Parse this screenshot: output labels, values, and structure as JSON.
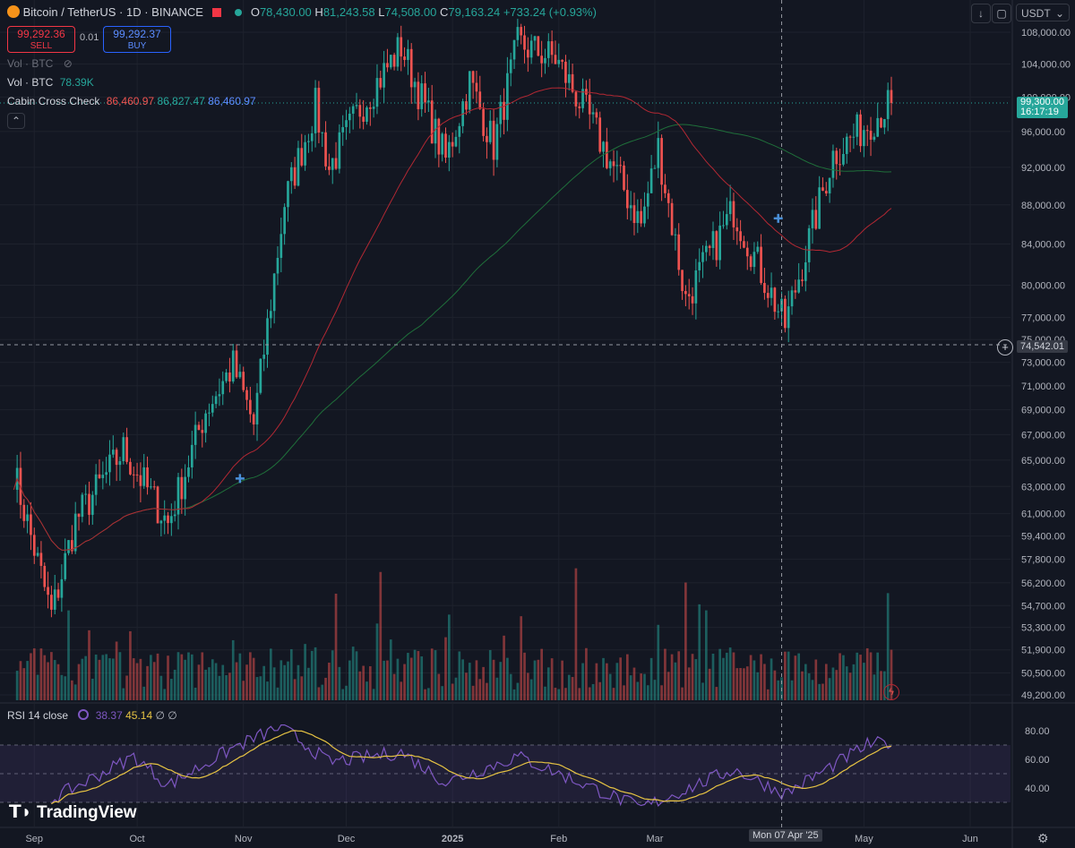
{
  "header": {
    "title": "Bitcoin / TetherUS · 1D · BINANCE",
    "ohlc": {
      "o_label": "O",
      "o": "78,430.00",
      "h_label": "H",
      "h": "81,243.58",
      "l_label": "L",
      "l": "74,508.00",
      "c_label": "C",
      "c": "79,163.24",
      "change": "+733.24 (+0.93%)"
    },
    "sell_price": "99,292.36",
    "sell_label": "SELL",
    "spread": "0.01",
    "buy_price": "99,292.37",
    "buy_label": "BUY",
    "currency": "USDT"
  },
  "indicators": {
    "vol_hidden": "Vol · BTC",
    "vol_label": "Vol · BTC",
    "vol_value": "78.39K",
    "cabin_label": "Cabin Cross Check",
    "cabin_v1": "86,460.97",
    "cabin_v2": "86,827.47",
    "cabin_v3": "86,460.97",
    "rsi_label": "RSI 14 close",
    "rsi_v1": "38.37",
    "rsi_v2": "45.14",
    "rsi_null1": "∅",
    "rsi_null2": "∅"
  },
  "price_axis": {
    "labels": [
      "108,000.00",
      "104,000.00",
      "100,000.00",
      "96,000.00",
      "92,000.00",
      "88,000.00",
      "84,000.00",
      "80,000.00",
      "77,000.00",
      "75,000.00",
      "73,000.00",
      "71,000.00",
      "69,000.00",
      "67,000.00",
      "65,000.00",
      "63,000.00",
      "61,000.00",
      "59,400.00",
      "57,800.00",
      "56,200.00",
      "54,700.00",
      "53,300.00",
      "51,900.00",
      "50,500.00",
      "49,200.00"
    ],
    "last_price": "99,300.00",
    "countdown": "16:17:19",
    "crosshair_price": "74,542.01"
  },
  "rsi_axis": {
    "labels": [
      "80.00",
      "60.00",
      "40.00"
    ]
  },
  "time_axis": {
    "labels": [
      "Sep",
      "Oct",
      "Nov",
      "Dec",
      "2025",
      "Feb",
      "Mar",
      "May",
      "Jun"
    ],
    "crosshair_date": "Mon 07 Apr '25"
  },
  "watermark": "TradingView",
  "colors": {
    "bg": "#131722",
    "up": "#26a69a",
    "down": "#ef5350",
    "ma_fast": "#b22833",
    "ma_slow": "#1f6f3a",
    "rsi": "#7e57c2",
    "rsi_ma": "#e6c343",
    "accent": "#2962ff"
  },
  "chart_data": [
    {
      "type": "line",
      "subtype": "candlestick",
      "x_range": [
        "2024-08-22",
        "2025-05-09"
      ],
      "ylim": [
        49200,
        108000
      ],
      "y_scale": "log",
      "grid": true,
      "series": [
        {
          "name": "Bitcoin / TetherUS",
          "points": [
            {
              "x": "2024-08-26",
              "y": 64200
            },
            {
              "x": "2024-09-06",
              "y": 54100
            },
            {
              "x": "2024-09-13",
              "y": 60500
            },
            {
              "x": "2024-09-27",
              "y": 65800
            },
            {
              "x": "2024-10-10",
              "y": 60300
            },
            {
              "x": "2024-10-21",
              "y": 69000
            },
            {
              "x": "2024-10-29",
              "y": 72700
            },
            {
              "x": "2024-11-04",
              "y": 67800
            },
            {
              "x": "2024-11-13",
              "y": 88200
            },
            {
              "x": "2024-11-22",
              "y": 98900
            },
            {
              "x": "2024-11-26",
              "y": 91900
            },
            {
              "x": "2024-12-05",
              "y": 98700
            },
            {
              "x": "2024-12-17",
              "y": 106200
            },
            {
              "x": "2024-12-30",
              "y": 92800
            },
            {
              "x": "2025-01-06",
              "y": 101900
            },
            {
              "x": "2025-01-13",
              "y": 94400
            },
            {
              "x": "2025-01-20",
              "y": 106500
            },
            {
              "x": "2025-01-31",
              "y": 104700
            },
            {
              "x": "2025-02-10",
              "y": 97400
            },
            {
              "x": "2025-02-25",
              "y": 86000
            },
            {
              "x": "2025-03-02",
              "y": 94200
            },
            {
              "x": "2025-03-10",
              "y": 78600
            },
            {
              "x": "2025-03-24",
              "y": 87500
            },
            {
              "x": "2025-04-08",
              "y": 76300
            },
            {
              "x": "2025-04-22",
              "y": 93400
            },
            {
              "x": "2025-05-02",
              "y": 96900
            },
            {
              "x": "2025-05-09",
              "y": 99300
            }
          ]
        }
      ]
    },
    {
      "type": "line",
      "title": "RSI 14 close",
      "ylim": [
        20,
        85
      ],
      "series": [
        {
          "name": "RSI",
          "points": [
            {
              "x": "2024-09-06",
              "y": 32
            },
            {
              "x": "2024-09-30",
              "y": 62
            },
            {
              "x": "2024-10-10",
              "y": 42
            },
            {
              "x": "2024-10-29",
              "y": 68
            },
            {
              "x": "2024-11-12",
              "y": 83
            },
            {
              "x": "2024-11-26",
              "y": 58
            },
            {
              "x": "2024-12-17",
              "y": 65
            },
            {
              "x": "2024-12-30",
              "y": 44
            },
            {
              "x": "2025-01-20",
              "y": 62
            },
            {
              "x": "2025-02-25",
              "y": 26
            },
            {
              "x": "2025-03-24",
              "y": 53
            },
            {
              "x": "2025-04-08",
              "y": 36
            },
            {
              "x": "2025-05-02",
              "y": 70
            },
            {
              "x": "2025-05-09",
              "y": 72
            }
          ]
        }
      ]
    }
  ]
}
